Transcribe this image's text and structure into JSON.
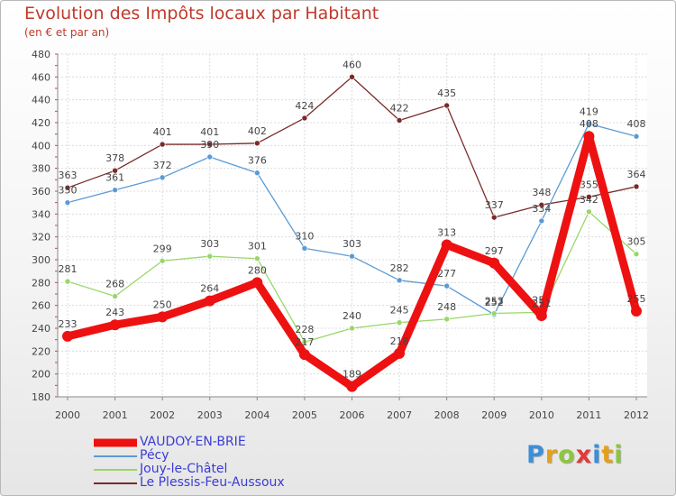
{
  "header": {
    "title": "Evolution des Impôts locaux par Habitant",
    "subtitle": "(en € et par an)"
  },
  "logo": {
    "letters": [
      "P",
      "r",
      "o",
      "x",
      "i",
      "t",
      "i"
    ],
    "colors": [
      "#3a8fd8",
      "#e3a01b",
      "#8dc63f",
      "#e03a3a",
      "#3a8fd8",
      "#e3a01b",
      "#8dc63f"
    ]
  },
  "chart_data": {
    "type": "line",
    "title": "Evolution des Impôts locaux par Habitant",
    "subtitle": "(en € et par an)",
    "xlabel": "",
    "ylabel": "",
    "x": [
      "2000",
      "2001",
      "2002",
      "2003",
      "2004",
      "2005",
      "2006",
      "2007",
      "2008",
      "2009",
      "2010",
      "2011",
      "2012"
    ],
    "ylim": [
      180,
      480
    ],
    "yticks": [
      180,
      200,
      220,
      240,
      260,
      280,
      300,
      320,
      340,
      360,
      380,
      400,
      420,
      440,
      460,
      480
    ],
    "grid": true,
    "legend_position": "bottom-left",
    "series": [
      {
        "name": "Le Plessis-Feu-Aussoux",
        "color": "#7a2a2a",
        "values": [
          363,
          378,
          401,
          401,
          402,
          424,
          460,
          422,
          435,
          337,
          348,
          355,
          364
        ]
      },
      {
        "name": "Pécy",
        "color": "#5b9bd5",
        "values": [
          350,
          361,
          372,
          390,
          376,
          310,
          303,
          282,
          277,
          252,
          334,
          419,
          408
        ]
      },
      {
        "name": "Jouy-le-Châtel",
        "color": "#9ad66a",
        "values": [
          281,
          268,
          299,
          303,
          301,
          228,
          240,
          245,
          248,
          253,
          254,
          342,
          305
        ]
      },
      {
        "name": "VAUDOY-EN-BRIE",
        "color": "#ee1111",
        "values": [
          233,
          243,
          250,
          264,
          280,
          217,
          189,
          218,
          313,
          297,
          251,
          408,
          255
        ]
      }
    ],
    "data_labels": {
      "VAUDOY-EN-BRIE": [
        "233",
        "243",
        "250",
        "264",
        "280",
        "217",
        "189",
        "218",
        "313",
        "297",
        "251",
        "408",
        "255"
      ],
      "Pécy": [
        "350",
        "361",
        "372",
        "390",
        "376",
        "310",
        "303",
        "282",
        "277",
        "252",
        "334",
        "419",
        "408"
      ],
      "Jouy-le-Châtel": [
        "281",
        "268",
        "299",
        "303",
        "301",
        "228",
        "240",
        "245",
        "248",
        "253",
        "254",
        "342",
        "305"
      ],
      "Le Plessis-Feu-Aussoux": [
        "363",
        "378",
        "401",
        "401",
        "402",
        "424",
        "460",
        "422",
        "435",
        "337",
        "348",
        "355",
        "364"
      ]
    }
  },
  "legend": [
    {
      "label": "VAUDOY-EN-BRIE",
      "color": "#ee1111",
      "style": "thick"
    },
    {
      "label": "Pécy",
      "color": "#5b9bd5",
      "style": "thin"
    },
    {
      "label": "Jouy-le-Châtel",
      "color": "#9ad66a",
      "style": "thin"
    },
    {
      "label": "Le Plessis-Feu-Aussoux",
      "color": "#7a2a2a",
      "style": "thin"
    }
  ]
}
